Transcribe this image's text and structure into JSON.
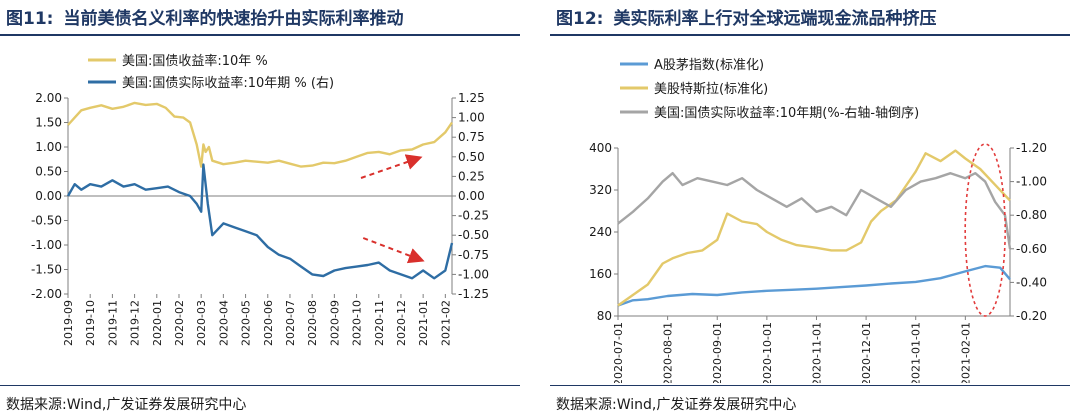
{
  "left": {
    "title_num": "图11:",
    "title_text": "当前美债名义利率的快速抬升由实际利率推动",
    "source": "数据来源:Wind,广发证券发展研究中心",
    "chart_data": {
      "type": "line",
      "legend": [
        {
          "label": "美国:国债收益率:10年 %",
          "color": "#e3c96a"
        },
        {
          "label": "美国:国债实际收益率:10年期 % (右)",
          "color": "#2e6da4"
        }
      ],
      "x_ticks": [
        "2019-09",
        "2019-10",
        "2019-11",
        "2019-12",
        "2020-01",
        "2020-02",
        "2020-03",
        "2020-04",
        "2020-05",
        "2020-06",
        "2020-07",
        "2020-08",
        "2020-09",
        "2020-10",
        "2020-11",
        "2020-12",
        "2021-01",
        "2021-02"
      ],
      "y_left": {
        "min": -2.0,
        "max": 2.0,
        "ticks": [
          "2.00",
          "1.50",
          "1.00",
          "0.50",
          "0.00",
          "-0.50",
          "-1.00",
          "-1.50",
          "-2.00"
        ]
      },
      "y_right": {
        "min": -1.25,
        "max": 1.25,
        "ticks": [
          "1.25",
          "1.00",
          "0.75",
          "0.50",
          "0.25",
          "0.00",
          "-0.25",
          "-0.50",
          "-0.75",
          "-1.00",
          "-1.25"
        ]
      },
      "series": [
        {
          "name": "美国:国债收益率:10年 %",
          "axis": "left",
          "color": "#e3c96a",
          "x": [
            0,
            0.3,
            0.6,
            1,
            1.5,
            2,
            2.5,
            3,
            3.5,
            4,
            4.4,
            4.8,
            5.2,
            5.5,
            5.8,
            6.0,
            6.1,
            6.2,
            6.35,
            6.5,
            7,
            7.5,
            8,
            8.5,
            9,
            9.5,
            10,
            10.5,
            11,
            11.5,
            12,
            12.5,
            13,
            13.5,
            14,
            14.5,
            15,
            15.5,
            16,
            16.5,
            17,
            17.3
          ],
          "y": [
            1.45,
            1.6,
            1.75,
            1.8,
            1.85,
            1.78,
            1.82,
            1.9,
            1.86,
            1.88,
            1.8,
            1.62,
            1.6,
            1.5,
            1.05,
            0.6,
            1.05,
            0.9,
            1.0,
            0.72,
            0.65,
            0.68,
            0.72,
            0.7,
            0.68,
            0.72,
            0.66,
            0.6,
            0.62,
            0.68,
            0.67,
            0.72,
            0.8,
            0.88,
            0.9,
            0.85,
            0.93,
            0.95,
            1.05,
            1.1,
            1.3,
            1.5
          ]
        },
        {
          "name": "美国:国债实际收益率:10年期 % (右)",
          "axis": "right",
          "color": "#2e6da4",
          "x": [
            0,
            0.3,
            0.6,
            1,
            1.5,
            2,
            2.5,
            3,
            3.5,
            4,
            4.5,
            5,
            5.5,
            5.8,
            6.0,
            6.1,
            6.3,
            6.5,
            7,
            7.5,
            8,
            8.5,
            9,
            9.5,
            10,
            10.5,
            11,
            11.5,
            12,
            12.5,
            13,
            13.5,
            14,
            14.5,
            15,
            15.5,
            16,
            16.5,
            17,
            17.3
          ],
          "y": [
            0.0,
            0.15,
            0.08,
            0.15,
            0.12,
            0.2,
            0.12,
            0.15,
            0.08,
            0.1,
            0.12,
            0.05,
            0.0,
            -0.1,
            -0.2,
            0.4,
            -0.1,
            -0.5,
            -0.35,
            -0.4,
            -0.45,
            -0.5,
            -0.65,
            -0.75,
            -0.8,
            -0.9,
            -1.0,
            -1.02,
            -0.95,
            -0.92,
            -0.9,
            -0.88,
            -0.85,
            -0.95,
            -1.0,
            -1.05,
            -0.95,
            -1.05,
            -0.95,
            -0.6
          ]
        }
      ]
    }
  },
  "right": {
    "title_num": "图12:",
    "title_text": "美实际利率上行对全球远端现金流品种挤压",
    "source": "数据来源:Wind,广发证券发展研究中心",
    "chart_data": {
      "type": "line",
      "legend": [
        {
          "label": "A股茅指数(标准化)",
          "color": "#5b9bd5"
        },
        {
          "label": "美股特斯拉(标准化)",
          "color": "#e3c96a"
        },
        {
          "label": "美国:国债实际收益率:10年期(%-右轴-轴倒序)",
          "color": "#a5a5a5"
        }
      ],
      "x_ticks": [
        "2020-07-01",
        "2020-08-01",
        "2020-09-01",
        "2020-10-01",
        "2020-11-01",
        "2020-12-01",
        "2021-01-01",
        "2021-02-01"
      ],
      "y_left": {
        "min": 80,
        "max": 400,
        "ticks": [
          "400",
          "320",
          "240",
          "160",
          "80"
        ]
      },
      "y_right": {
        "min": -1.2,
        "max": -0.2,
        "inverted": true,
        "ticks": [
          "-1.20",
          "-1.00",
          "-0.80",
          "-0.60",
          "-0.40",
          "-0.20"
        ]
      },
      "series": [
        {
          "name": "A股茅指数(标准化)",
          "axis": "left",
          "color": "#5b9bd5",
          "x": [
            0,
            0.3,
            0.6,
            1,
            1.5,
            2,
            2.5,
            3,
            3.5,
            4,
            4.5,
            5,
            5.5,
            6,
            6.5,
            7,
            7.4,
            7.7,
            7.9
          ],
          "y": [
            100,
            110,
            112,
            118,
            122,
            120,
            125,
            128,
            130,
            132,
            135,
            138,
            142,
            145,
            152,
            165,
            175,
            172,
            150
          ]
        },
        {
          "name": "美股特斯拉(标准化)",
          "axis": "left",
          "color": "#e3c96a",
          "x": [
            0,
            0.3,
            0.6,
            0.9,
            1.1,
            1.4,
            1.7,
            2.0,
            2.2,
            2.5,
            2.8,
            3.0,
            3.3,
            3.6,
            4.0,
            4.3,
            4.6,
            4.9,
            5.1,
            5.3,
            5.6,
            6.0,
            6.2,
            6.5,
            6.8,
            7.0,
            7.3,
            7.6,
            7.9
          ],
          "y": [
            100,
            120,
            140,
            180,
            190,
            200,
            205,
            225,
            275,
            260,
            255,
            240,
            225,
            215,
            210,
            205,
            205,
            220,
            260,
            280,
            300,
            355,
            390,
            375,
            395,
            380,
            360,
            330,
            300
          ]
        },
        {
          "name": "美国:国债实际收益率:10年期(%-右轴-轴倒序)",
          "axis": "right",
          "color": "#a5a5a5",
          "x": [
            0,
            0.3,
            0.6,
            0.9,
            1.1,
            1.3,
            1.6,
            1.9,
            2.2,
            2.5,
            2.8,
            3.1,
            3.4,
            3.7,
            4.0,
            4.3,
            4.6,
            4.9,
            5.2,
            5.5,
            5.8,
            6.1,
            6.4,
            6.7,
            7.0,
            7.2,
            7.4,
            7.6,
            7.8,
            7.9
          ],
          "y": [
            -0.75,
            -0.82,
            -0.9,
            -1.0,
            -1.05,
            -0.98,
            -1.02,
            -1.0,
            -0.98,
            -1.02,
            -0.95,
            -0.9,
            -0.85,
            -0.9,
            -0.82,
            -0.85,
            -0.8,
            -0.95,
            -0.9,
            -0.85,
            -0.95,
            -1.0,
            -1.02,
            -1.05,
            -1.02,
            -1.05,
            -1.0,
            -0.88,
            -0.8,
            -0.6
          ]
        }
      ]
    }
  }
}
